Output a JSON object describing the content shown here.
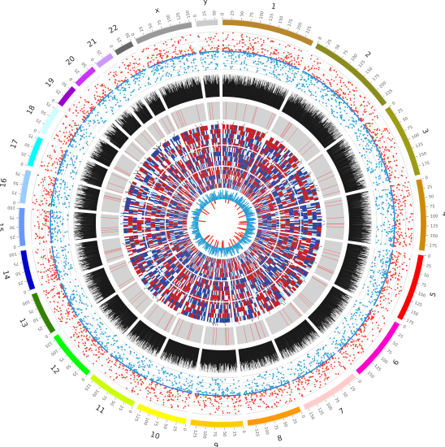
{
  "chart_data": {
    "type": "circos",
    "title": "",
    "chromosomes": [
      {
        "name": "1",
        "length": 249,
        "color": "#b8862b",
        "ticks": [
          0,
          25,
          50,
          75,
          100,
          125,
          150,
          175,
          200,
          225
        ]
      },
      {
        "name": "2",
        "length": 243,
        "color": "#8c8c1e",
        "ticks": [
          0,
          25,
          50,
          75,
          100,
          125,
          150,
          175,
          200,
          225
        ]
      },
      {
        "name": "3",
        "length": 198,
        "color": "#9c9c12",
        "ticks": [
          0,
          25,
          50,
          75,
          100,
          125,
          150,
          175
        ]
      },
      {
        "name": "4",
        "length": 191,
        "color": "#cc8c00",
        "ticks": [
          0,
          25,
          50,
          75,
          100,
          125,
          150,
          175
        ]
      },
      {
        "name": "5",
        "length": 181,
        "color": "#ff0000",
        "ticks": [
          0,
          25,
          50,
          75,
          100,
          125,
          150,
          175
        ]
      },
      {
        "name": "6",
        "length": 171,
        "color": "#ff00cc",
        "ticks": [
          0,
          25,
          50,
          75,
          100,
          125,
          150
        ]
      },
      {
        "name": "7",
        "length": 159,
        "color": "#ffcccc",
        "ticks": [
          0,
          25,
          50,
          75,
          100,
          125,
          150
        ]
      },
      {
        "name": "8",
        "length": 146,
        "color": "#ff9900",
        "ticks": [
          0,
          25,
          50,
          75,
          100,
          125
        ]
      },
      {
        "name": "9",
        "length": 141,
        "color": "#ffcc00",
        "ticks": [
          0,
          25,
          50,
          75,
          100,
          125
        ]
      },
      {
        "name": "10",
        "length": 136,
        "color": "#ffff00",
        "ticks": [
          0,
          25,
          50,
          75,
          100,
          125
        ]
      },
      {
        "name": "11",
        "length": 135,
        "color": "#ccff00",
        "ticks": [
          0,
          25,
          50,
          75,
          100,
          125
        ]
      },
      {
        "name": "12",
        "length": 134,
        "color": "#00ff00",
        "ticks": [
          0,
          25,
          50,
          75,
          100,
          125
        ]
      },
      {
        "name": "13",
        "length": 115,
        "color": "#358000",
        "ticks": [
          0,
          25,
          50,
          75,
          100
        ]
      },
      {
        "name": "14",
        "length": 107,
        "color": "#0000cc",
        "ticks": [
          0,
          25,
          50,
          75,
          100
        ]
      },
      {
        "name": "15",
        "length": 102,
        "color": "#6699ff",
        "ticks": [
          0,
          25,
          50,
          75,
          100
        ]
      },
      {
        "name": "16",
        "length": 90,
        "color": "#99ccff",
        "ticks": [
          0,
          25,
          50,
          75
        ]
      },
      {
        "name": "17",
        "length": 81,
        "color": "#00ffff",
        "ticks": [
          0,
          25,
          50,
          75
        ]
      },
      {
        "name": "18",
        "length": 78,
        "color": "#ccffff",
        "ticks": [
          0,
          25,
          50,
          75
        ]
      },
      {
        "name": "19",
        "length": 59,
        "color": "#9900cc",
        "ticks": [
          0,
          25,
          50
        ]
      },
      {
        "name": "20",
        "length": 63,
        "color": "#cc33ff",
        "ticks": [
          0,
          25,
          50
        ]
      },
      {
        "name": "21",
        "length": 48,
        "color": "#cc99ff",
        "ticks": [
          0,
          25
        ]
      },
      {
        "name": "22",
        "length": 51,
        "color": "#666666",
        "ticks": [
          0,
          25,
          50
        ]
      },
      {
        "name": "x",
        "length": 155,
        "color": "#999999",
        "ticks": [
          0,
          25,
          50,
          75,
          100,
          125,
          150
        ]
      },
      {
        "name": "y",
        "length": 59,
        "color": "#cccccc",
        "ticks": [
          0,
          25,
          50
        ]
      }
    ],
    "tracks": [
      "ideogram",
      "scatter-up-red",
      "scatter-down-blue",
      "density-black",
      "gray-band",
      "links",
      "heatmap",
      "center-histogram"
    ],
    "colors": {
      "scatter_up": "#ee3b2b",
      "scatter_down": "#2b9fd4",
      "density": "#1a1a1a",
      "band": "#d3d3d3",
      "heat_red": "#c4161c",
      "heat_blue": "#253d96",
      "heat_light": "#a9d7e8",
      "grid": "#cfcfcf",
      "mean_line": "#2b7fd4"
    },
    "grid": true,
    "legend": "none"
  }
}
